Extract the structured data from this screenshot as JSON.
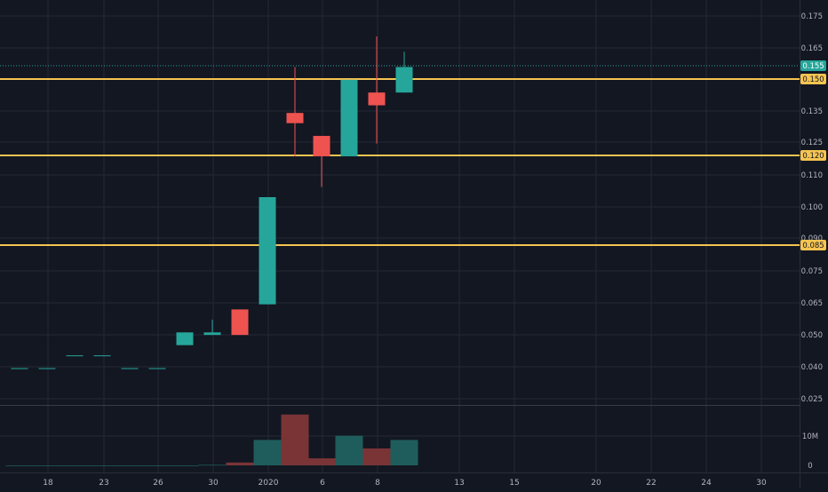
{
  "theme": {
    "background": "#131722",
    "grid": "#242837",
    "axis_text": "#b2b5be",
    "up": "#26a69a",
    "down": "#ef5350",
    "up_volume": "#1f5d5c",
    "down_volume": "#7a3436",
    "hline": "#f5c451",
    "last_price_line": "#26a69a"
  },
  "chart_data": {
    "type": "candlestick",
    "price_ylim": [
      0.02,
      0.178
    ],
    "volume_ylim": [
      0,
      19500000
    ],
    "x_ticks": [
      "18",
      "23",
      "26",
      "30",
      "2020",
      "6",
      "8",
      "13",
      "15",
      "20",
      "22",
      "24",
      "30"
    ],
    "y_ticks": [
      "0.175",
      "0.165",
      "0.150",
      "0.135",
      "0.125",
      "0.110",
      "0.100",
      "0.090",
      "0.085",
      "0.075",
      "0.065",
      "0.050",
      "0.040",
      "0.025"
    ],
    "volume_ticks": [
      "10M",
      "0"
    ],
    "horizontal_levels": [
      {
        "value": 0.15,
        "label": "0.150"
      },
      {
        "value": 0.12,
        "label": "0.120"
      },
      {
        "value": 0.085,
        "label": "0.085"
      }
    ],
    "last_price": {
      "value": 0.155,
      "label": "0.155"
    },
    "candles": [
      {
        "open": 0.037,
        "high": 0.037,
        "low": 0.037,
        "close": 0.037,
        "volume": 0,
        "dir": "up"
      },
      {
        "open": 0.037,
        "high": 0.037,
        "low": 0.037,
        "close": 0.037,
        "volume": 0,
        "dir": "up"
      },
      {
        "open": 0.042,
        "high": 0.042,
        "low": 0.042,
        "close": 0.042,
        "volume": 0,
        "dir": "up"
      },
      {
        "open": 0.042,
        "high": 0.042,
        "low": 0.042,
        "close": 0.042,
        "volume": 0,
        "dir": "up"
      },
      {
        "open": 0.037,
        "high": 0.037,
        "low": 0.037,
        "close": 0.037,
        "volume": 0,
        "dir": "up"
      },
      {
        "open": 0.037,
        "high": 0.037,
        "low": 0.037,
        "close": 0.037,
        "volume": 0,
        "dir": "up"
      },
      {
        "open": 0.046,
        "high": 0.051,
        "low": 0.046,
        "close": 0.051,
        "volume": 0,
        "dir": "up"
      },
      {
        "open": 0.05,
        "high": 0.056,
        "low": 0.05,
        "close": 0.051,
        "volume": 200000,
        "dir": "up"
      },
      {
        "open": 0.06,
        "high": 0.06,
        "low": 0.05,
        "close": 0.05,
        "volume": 1000000,
        "dir": "down"
      },
      {
        "open": 0.062,
        "high": 0.104,
        "low": 0.062,
        "close": 0.104,
        "volume": 9000000,
        "dir": "up"
      },
      {
        "open": 0.133,
        "high": 0.155,
        "low": 0.12,
        "close": 0.137,
        "volume": 18000000,
        "dir": "down"
      },
      {
        "open": 0.128,
        "high": 0.128,
        "low": 0.108,
        "close": 0.12,
        "volume": 2500000,
        "dir": "down"
      },
      {
        "open": 0.12,
        "high": 0.15,
        "low": 0.12,
        "close": 0.15,
        "volume": 10500000,
        "dir": "up"
      },
      {
        "open": 0.145,
        "high": 0.167,
        "low": 0.125,
        "close": 0.14,
        "volume": 6000000,
        "dir": "down"
      },
      {
        "open": 0.145,
        "high": 0.161,
        "low": 0.145,
        "close": 0.155,
        "volume": 9000000,
        "dir": "up"
      }
    ]
  }
}
